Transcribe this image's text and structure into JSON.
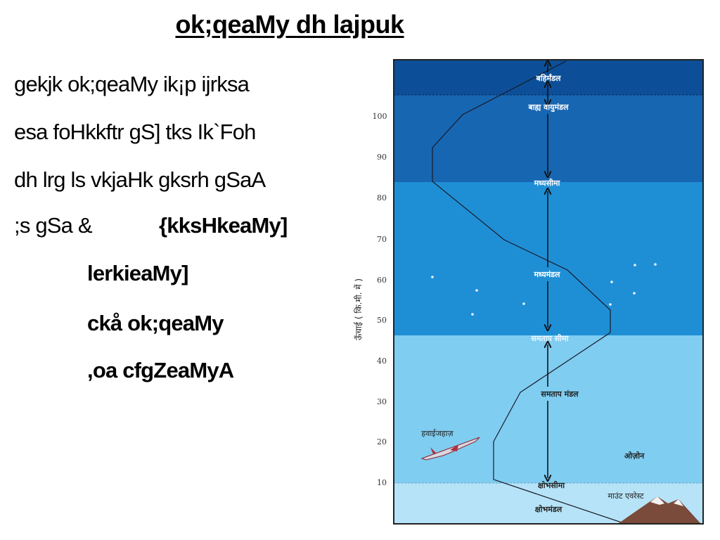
{
  "slide": {
    "title": "ok;qeaMy dh lajpuk",
    "lines": [
      "gekjk ok;qeaMy ik¡p ijrksa",
      "esa foHkkftr gS] tks Ik`Foh",
      "dh lrg ls vkjaHk gksrh gSaA",
      ";s gSa &",
      "{kksHkeaMy]",
      "lerkieaMy]",
      "ckå ok;qeaMy",
      ",oa cfgZeaMyA"
    ]
  },
  "diagram": {
    "axis_label": "ऊँचाई ( कि.मी. में )",
    "ticks": [
      "100",
      "90",
      "80",
      "70",
      "60",
      "50",
      "40",
      "30",
      "20",
      "10"
    ],
    "labels": {
      "exosphere": "बहिर्मंडल",
      "thermosphere": "बाह्य वायुमंडल",
      "mesopause": "मध्यसीमा",
      "mesosphere": "मध्यमंडल",
      "stratopause": "समताप सीमा",
      "stratosphere": "समताप मंडल",
      "airplane": "हवाईजहाज़",
      "ozone": "ओज़ोन",
      "tropopause": "क्षोभसीमा",
      "everest": "माउंट एवरेस्ट",
      "troposphere": "क्षोभमंडल"
    },
    "colors": {
      "exosphere": "#0c4f98",
      "thermosphere": "#1766b2",
      "mesosphere": "#1f8fd5",
      "stratosphere": "#7fcdf1",
      "troposphere": "#b6e3f7"
    }
  }
}
